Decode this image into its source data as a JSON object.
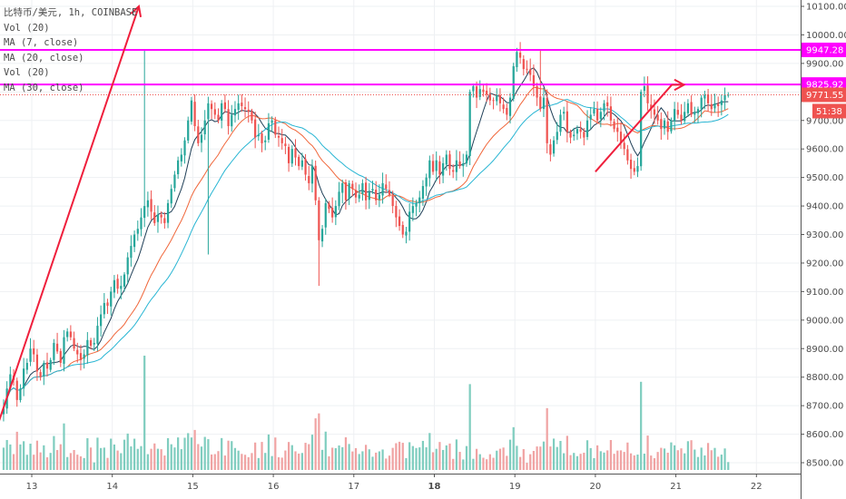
{
  "legend": {
    "symbol": "比特币/美元, 1h, COINBASE",
    "lines": [
      "Vol (20)",
      "MA (7, close)",
      "MA (20, close)",
      "Vol (20)",
      "MA (30, close)"
    ]
  },
  "colors": {
    "up": "#26a69a",
    "down": "#ef5350",
    "vol_up": "#7fcdbf",
    "vol_down": "#f0a3a3",
    "ma7": "#1f3f57",
    "ma20": "#f0663a",
    "ma30": "#27b5d3",
    "hline": "#ff00ff",
    "drawing": "#ef1f3c",
    "current_price": "#ef5350",
    "timer": "#ef5350"
  },
  "chart_data": {
    "type": "candlestick",
    "timeframe": "1h",
    "instrument": "比特币/美元",
    "exchange": "COINBASE",
    "y_axis": {
      "ylim": [
        8480,
        10130
      ],
      "ticks": [
        8500,
        8600,
        8700,
        8800,
        8900,
        9000,
        9100,
        9200,
        9300,
        9400,
        9500,
        9600,
        9700,
        9800,
        9900,
        10000,
        10100
      ],
      "tick_labels": [
        "8500.00",
        "8600.00",
        "8700.00",
        "8800.00",
        "8900.00",
        "9000.00",
        "9100.00",
        "9200.00",
        "9300.00",
        "9400.00",
        "9500.00",
        "9600.00",
        "9700.00",
        "9800.00",
        "9900.00",
        "10000.00",
        "10100.00"
      ]
    },
    "x_axis": {
      "day_ticks": [
        13,
        14,
        15,
        16,
        17,
        18,
        19,
        20,
        21,
        22
      ],
      "tick_labels": [
        "13",
        "14",
        "15",
        "16",
        "17",
        "18",
        "19",
        "20",
        "21",
        "22"
      ],
      "bold_labels": [
        "18"
      ],
      "bars_per_day": 24,
      "first_bar_day_offset": -0.35,
      "right_extent_day": 22.55
    },
    "grid": true,
    "closes": [
      8690,
      8760,
      8810,
      8790,
      8720,
      8760,
      8830,
      8850,
      8900,
      8880,
      8820,
      8800,
      8850,
      8830,
      8860,
      8920,
      8890,
      8850,
      8940,
      8960,
      8940,
      8900,
      8880,
      8860,
      8880,
      8930,
      8910,
      8920,
      8980,
      9020,
      9060,
      9050,
      9100,
      9140,
      9110,
      9120,
      9160,
      9220,
      9260,
      9300,
      9320,
      9360,
      9400,
      9420,
      9380,
      9340,
      9370,
      9360,
      9340,
      9410,
      9460,
      9510,
      9560,
      9580,
      9630,
      9700,
      9770,
      9680,
      9620,
      9650,
      9700,
      9760,
      9740,
      9720,
      9700,
      9760,
      9740,
      9680,
      9720,
      9740,
      9760,
      9750,
      9740,
      9730,
      9700,
      9640,
      9650,
      9620,
      9630,
      9690,
      9700,
      9650,
      9640,
      9620,
      9610,
      9550,
      9600,
      9570,
      9540,
      9560,
      9510,
      9480,
      9540,
      9420,
      9280,
      9320,
      9410,
      9390,
      9360,
      9400,
      9450,
      9480,
      9420,
      9480,
      9460,
      9430,
      9440,
      9480,
      9420,
      9450,
      9460,
      9420,
      9440,
      9480,
      9460,
      9440,
      9400,
      9360,
      9330,
      9300,
      9310,
      9380,
      9400,
      9410,
      9430,
      9470,
      9500,
      9560,
      9520,
      9560,
      9510,
      9550,
      9580,
      9530,
      9520,
      9560,
      9540,
      9550,
      9580,
      9800,
      9820,
      9780,
      9810,
      9800,
      9790,
      9770,
      9770,
      9790,
      9760,
      9740,
      9720,
      9780,
      9890,
      9940,
      9920,
      9880,
      9880,
      9860,
      9820,
      9780,
      9740,
      9780,
      9620,
      9580,
      9630,
      9660,
      9720,
      9730,
      9660,
      9640,
      9650,
      9670,
      9660,
      9640,
      9700,
      9720,
      9740,
      9700,
      9730,
      9760,
      9750,
      9700,
      9670,
      9660,
      9620,
      9600,
      9560,
      9530,
      9520,
      9540,
      9800,
      9820,
      9760,
      9740,
      9720,
      9700,
      9670,
      9700,
      9660,
      9700,
      9740,
      9720,
      9700,
      9730,
      9760,
      9720,
      9730,
      9740,
      9780,
      9790,
      9760,
      9740,
      9760,
      9750,
      9770,
      9790,
      9790
    ],
    "last_price_label": "9771.55",
    "countdown_label": "51:38",
    "horizontal_lines": [
      {
        "price": 9947.28,
        "label": "9947.28"
      },
      {
        "price": 9825.92,
        "label": "9825.92"
      }
    ],
    "trendlines": [
      {
        "from": {
          "day": 12.55,
          "price": 8610
        },
        "to": {
          "day": 14.33,
          "price": 10100
        },
        "arrow": true
      },
      {
        "from": {
          "day": 20.0,
          "price": 9520
        },
        "to": {
          "day": 20.95,
          "price": 9825
        },
        "arrow": false
      },
      {
        "from": {
          "day": 20.95,
          "price": 9825
        },
        "to": {
          "day": 21.1,
          "price": 9825
        },
        "arrow": true
      }
    ]
  }
}
